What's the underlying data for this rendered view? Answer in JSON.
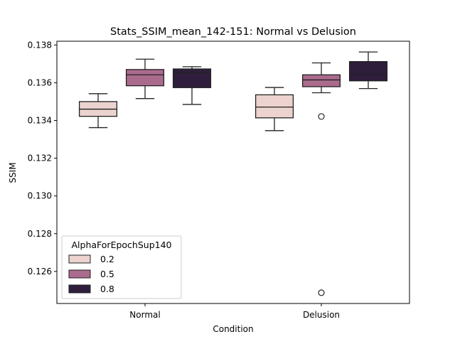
{
  "chart_data": {
    "type": "box",
    "title": "Stats_SSIM_mean_142-151: Normal vs Delusion",
    "xlabel": "Condition",
    "ylabel": "SSIM",
    "categories": [
      "Normal",
      "Delusion"
    ],
    "ylim": [
      0.1243,
      0.1382
    ],
    "yticks": [
      0.126,
      0.128,
      0.13,
      0.132,
      0.134,
      0.136,
      0.138
    ],
    "ytick_labels": [
      "0.126",
      "0.128",
      "0.130",
      "0.132",
      "0.134",
      "0.136",
      "0.138"
    ],
    "legend": {
      "title": "AlphaForEpochSup140",
      "placement": "lower-left"
    },
    "series": [
      {
        "name": "0.2",
        "color": "#ecd3d0",
        "boxes": [
          {
            "category": "Normal",
            "whisker_low": 0.13362,
            "q1": 0.13422,
            "median": 0.1346,
            "q3": 0.135,
            "whisker_high": 0.13542,
            "outliers": []
          },
          {
            "category": "Delusion",
            "whisker_low": 0.13346,
            "q1": 0.13414,
            "median": 0.13471,
            "q3": 0.13536,
            "whisker_high": 0.13575,
            "outliers": []
          }
        ]
      },
      {
        "name": "0.5",
        "color": "#ab6b8d",
        "boxes": [
          {
            "category": "Normal",
            "whisker_low": 0.13516,
            "q1": 0.13584,
            "median": 0.13642,
            "q3": 0.1367,
            "whisker_high": 0.13725,
            "outliers": []
          },
          {
            "category": "Delusion",
            "whisker_low": 0.13547,
            "q1": 0.13579,
            "median": 0.13615,
            "q3": 0.13642,
            "whisker_high": 0.13705,
            "outliers": [
              0.13421,
              0.12487
            ]
          }
        ]
      },
      {
        "name": "0.8",
        "color": "#2e1e3c",
        "boxes": [
          {
            "category": "Normal",
            "whisker_low": 0.13485,
            "q1": 0.13574,
            "median": 0.13655,
            "q3": 0.13673,
            "whisker_high": 0.13685,
            "outliers": []
          },
          {
            "category": "Delusion",
            "whisker_low": 0.13569,
            "q1": 0.1361,
            "median": 0.13645,
            "q3": 0.13712,
            "whisker_high": 0.13763,
            "outliers": []
          }
        ]
      }
    ]
  }
}
